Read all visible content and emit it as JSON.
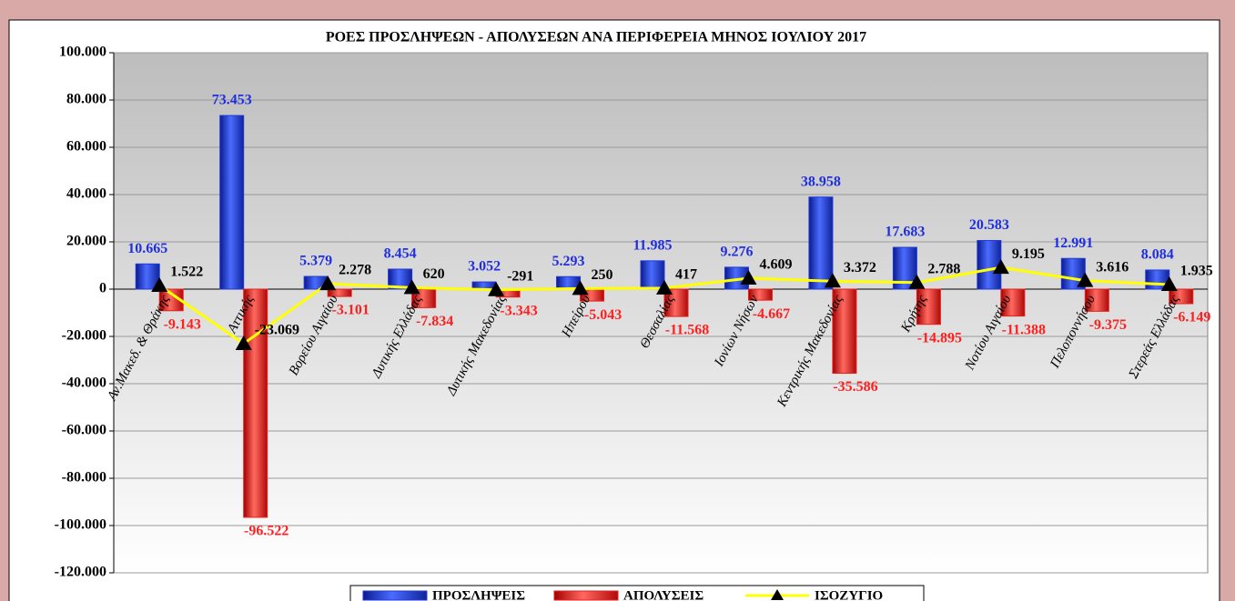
{
  "chart_data": {
    "type": "bar",
    "title": "ΡΟΕΣ ΠΡΟΣΛΗΨΕΩΝ - ΑΠΟΛΥΣΕΩΝ ΑΝΑ ΠΕΡΙΦΕΡΕΙΑ ΜΗΝΟΣ ΙΟΥΛΙΟΥ 2017",
    "categories": [
      "Αν.Μακεδ. & Θράκης",
      "Αττικής",
      "Βορείου Αιγαίου",
      "Δυτικής Ελλάδας",
      "Δυτικής Μακεδονίας",
      "Ηπείρου",
      "Θεσσαλίας",
      "Ιονίων Νήσων",
      "Κεντρικής Μακεδονίας",
      "Κρήτης",
      "Νοτίου Αιγαίου",
      "Πελοποννήσου",
      "Στερεάς Ελλάδας"
    ],
    "series": [
      {
        "name": "ΠΡΟΣΛΗΨΕΙΣ",
        "type": "bar",
        "color": "#1f3ad8",
        "label_color": "#1f2fe0",
        "values": [
          10665,
          73453,
          5379,
          8454,
          3052,
          5293,
          11985,
          9276,
          38958,
          17683,
          20583,
          12991,
          8084
        ],
        "value_labels": [
          "10.665",
          "73.453",
          "5.379",
          "8.454",
          "3.052",
          "5.293",
          "11.985",
          "9.276",
          "38.958",
          "17.683",
          "20.583",
          "12.991",
          "8.084"
        ]
      },
      {
        "name": "ΑΠΟΛΥΣΕΙΣ",
        "type": "bar",
        "color": "#e8201c",
        "label_color": "#ff1f1f",
        "values": [
          -9143,
          -96522,
          -3101,
          -7834,
          -3343,
          -5043,
          -11568,
          -4667,
          -35586,
          -14895,
          -11388,
          -9375,
          -6149
        ],
        "value_labels": [
          "-9.143",
          "-96.522",
          "-3.101",
          "-7.834",
          "-3.343",
          "-5.043",
          "-11.568",
          "-4.667",
          "-35.586",
          "-14.895",
          "-11.388",
          "-9.375",
          "-6.149"
        ]
      },
      {
        "name": "ΙΣΟΖΥΓΙΟ",
        "type": "line",
        "color": "#ffff00",
        "label_color": "#000000",
        "values": [
          1522,
          -23069,
          2278,
          620,
          -291,
          250,
          417,
          4609,
          3372,
          2788,
          9195,
          3616,
          1935
        ],
        "value_labels": [
          "1.522",
          "-23.069",
          "2.278",
          "620",
          "-291",
          "250",
          "417",
          "4.609",
          "3.372",
          "2.788",
          "9.195",
          "3.616",
          "1.935"
        ]
      }
    ],
    "ylim": [
      -120000,
      100000
    ],
    "yticks": [
      {
        "value": -120000,
        "label": "-120.000"
      },
      {
        "value": -100000,
        "label": "-100.000"
      },
      {
        "value": -80000,
        "label": "-80.000"
      },
      {
        "value": -60000,
        "label": "-60.000"
      },
      {
        "value": -40000,
        "label": "-40.000"
      },
      {
        "value": -20000,
        "label": "-20.000"
      },
      0,
      {
        "value": 20000,
        "label": "20.000"
      },
      {
        "value": 40000,
        "label": "40.000"
      },
      {
        "value": 60000,
        "label": "60.000"
      },
      {
        "value": 80000,
        "label": "80.000"
      },
      {
        "value": 100000,
        "label": "100.000"
      }
    ],
    "grid": true,
    "legend": "bottom"
  }
}
